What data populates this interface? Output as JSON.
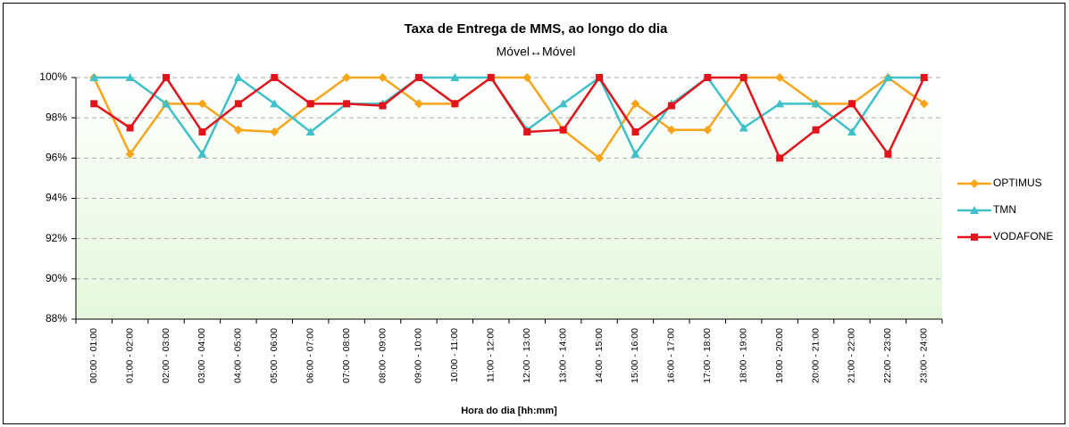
{
  "chart_data": {
    "type": "line",
    "title": "Taxa de Entrega de MMS, ao longo do dia",
    "subtitle": "Móvel↔Móvel",
    "x_label": "Hora do dia [hh:mm]",
    "categories": [
      "00:00 - 01:00",
      "01:00 - 02:00",
      "02:00 - 03:00",
      "03:00 - 04:00",
      "04:00 - 05:00",
      "05:00 - 06:00",
      "06:00 - 07:00",
      "07:00 - 08:00",
      "08:00 - 09:00",
      "09:00 - 10:00",
      "10:00 - 11:00",
      "11:00 - 12:00",
      "12:00 - 13:00",
      "13:00 - 14:00",
      "14:00 - 15:00",
      "15:00 - 16:00",
      "16:00 - 17:00",
      "17:00 - 18:00",
      "18:00 - 19:00",
      "19:00 - 20:00",
      "20:00 - 21:00",
      "21:00 - 22:00",
      "22:00 - 23:00",
      "23:00 - 24:00"
    ],
    "series": [
      {
        "name": "OPTIMUS",
        "color": "#f8a51c",
        "marker": "diamond",
        "values": [
          100,
          96.2,
          98.7,
          98.7,
          97.4,
          97.3,
          98.7,
          100,
          100,
          98.7,
          98.7,
          100,
          100,
          97.4,
          96.0,
          98.7,
          97.4,
          97.4,
          100,
          100,
          98.7,
          98.7,
          100,
          98.7
        ]
      },
      {
        "name": "TMN",
        "color": "#3fc1c9",
        "marker": "triangle",
        "values": [
          100,
          100,
          98.7,
          96.2,
          100,
          98.7,
          97.3,
          98.7,
          98.7,
          100,
          100,
          100,
          97.4,
          98.7,
          100,
          96.2,
          98.7,
          100,
          97.5,
          98.7,
          98.7,
          97.3,
          100,
          100
        ]
      },
      {
        "name": "VODAFONE",
        "color": "#e3131b",
        "marker": "square",
        "values": [
          98.7,
          97.5,
          100,
          97.3,
          98.7,
          100,
          98.7,
          98.7,
          98.6,
          100,
          98.7,
          100,
          97.3,
          97.4,
          100,
          97.3,
          98.6,
          100,
          100,
          96.0,
          97.4,
          98.7,
          96.2,
          100
        ]
      }
    ],
    "ylim": [
      88,
      100
    ],
    "yticks": [
      {
        "value": 88,
        "label": "88%"
      },
      {
        "value": 90,
        "label": "90%"
      },
      {
        "value": 92,
        "label": "92%"
      },
      {
        "value": 94,
        "label": "94%"
      },
      {
        "value": 96,
        "label": "96%"
      },
      {
        "value": 98,
        "label": "98%"
      },
      {
        "value": 100,
        "label": "100%"
      }
    ],
    "grid": true,
    "legend": "right"
  }
}
